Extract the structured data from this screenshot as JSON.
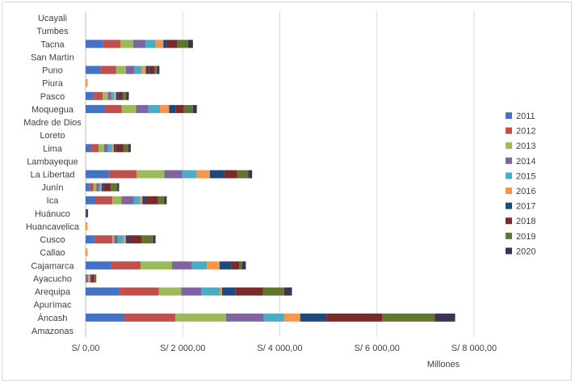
{
  "chart_data": {
    "type": "bar",
    "orientation": "horizontal",
    "stacked": true,
    "title": "",
    "xlabel": "Millones",
    "ylabel": "",
    "xlim": [
      0,
      8000
    ],
    "xticks": [
      0,
      2000,
      4000,
      6000,
      8000
    ],
    "xtick_labels": [
      "S/ 0,00",
      "S/ 2 000,00",
      "S/ 4 000,00",
      "S/ 6 000,00",
      "S/ 8 000,00"
    ],
    "grid": "vertical",
    "legend_position": "right",
    "categories": [
      "Amazonas",
      "Áncash",
      "Apurímac",
      "Arequipa",
      "Ayacucho",
      "Cajamarca",
      "Callao",
      "Cusco",
      "Huancavelica",
      "Huánuco",
      "Ica",
      "Junín",
      "La Libertad",
      "Lambayeque",
      "Lima",
      "Loreto",
      "Madre de Dios",
      "Moquegua",
      "Pasco",
      "Piura",
      "Puno",
      "San Martín",
      "Tacna",
      "Tumbes",
      "Ucayali"
    ],
    "series": [
      {
        "name": "2011",
        "color": "#4472C4",
        "values": [
          0,
          790,
          0,
          700,
          20,
          530,
          0,
          180,
          0,
          0,
          200,
          80,
          480,
          0,
          110,
          0,
          0,
          400,
          170,
          0,
          310,
          0,
          360,
          0,
          0
        ]
      },
      {
        "name": "2012",
        "color": "#C0504D",
        "values": [
          0,
          1060,
          0,
          810,
          30,
          600,
          0,
          370,
          0,
          0,
          350,
          80,
          570,
          0,
          160,
          0,
          0,
          340,
          180,
          0,
          320,
          0,
          360,
          0,
          0
        ]
      },
      {
        "name": "2013",
        "color": "#9BBB59",
        "values": [
          0,
          1040,
          0,
          460,
          0,
          650,
          0,
          40,
          0,
          0,
          190,
          60,
          570,
          0,
          110,
          0,
          0,
          300,
          110,
          0,
          200,
          0,
          260,
          0,
          0
        ]
      },
      {
        "name": "2014",
        "color": "#8064A2",
        "values": [
          0,
          780,
          0,
          420,
          0,
          410,
          0,
          80,
          0,
          0,
          250,
          60,
          370,
          0,
          80,
          0,
          0,
          250,
          70,
          0,
          180,
          0,
          250,
          0,
          0
        ]
      },
      {
        "name": "2015",
        "color": "#4BACC6",
        "values": [
          0,
          420,
          0,
          380,
          0,
          310,
          0,
          110,
          0,
          0,
          130,
          30,
          300,
          0,
          80,
          0,
          0,
          240,
          50,
          0,
          150,
          0,
          210,
          0,
          0
        ]
      },
      {
        "name": "2016",
        "color": "#F79646",
        "values": [
          0,
          330,
          0,
          40,
          50,
          260,
          40,
          50,
          40,
          0,
          50,
          20,
          270,
          0,
          40,
          0,
          0,
          190,
          50,
          40,
          80,
          0,
          160,
          0,
          0
        ]
      },
      {
        "name": "2017",
        "color": "#1F497D",
        "values": [
          0,
          540,
          0,
          280,
          30,
          240,
          0,
          60,
          0,
          20,
          60,
          40,
          290,
          0,
          40,
          0,
          0,
          130,
          50,
          0,
          60,
          0,
          70,
          0,
          0
        ]
      },
      {
        "name": "2018",
        "color": "#772C2A",
        "values": [
          0,
          1150,
          0,
          560,
          50,
          160,
          0,
          270,
          0,
          30,
          260,
          150,
          270,
          0,
          160,
          0,
          0,
          170,
          90,
          0,
          120,
          0,
          220,
          0,
          0
        ]
      },
      {
        "name": "2019",
        "color": "#5F7530",
        "values": [
          0,
          1080,
          0,
          440,
          40,
          60,
          0,
          230,
          0,
          0,
          130,
          130,
          230,
          0,
          100,
          0,
          0,
          190,
          70,
          0,
          50,
          0,
          220,
          0,
          0
        ]
      },
      {
        "name": "2020",
        "color": "#403152",
        "values": [
          0,
          420,
          0,
          160,
          0,
          80,
          0,
          50,
          0,
          0,
          50,
          40,
          80,
          0,
          50,
          0,
          0,
          80,
          50,
          0,
          50,
          0,
          100,
          0,
          0
        ]
      }
    ]
  }
}
